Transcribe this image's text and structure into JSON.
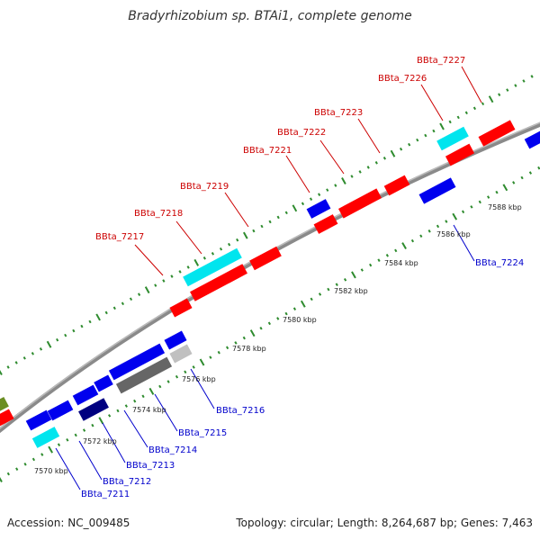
{
  "title": "Bradyrhizobium sp. BTAi1, complete genome",
  "footer": {
    "accession": "Accession: NC_009485",
    "summary": "Topology: circular; Length: 8,264,687 bp; Genes: 7,463"
  },
  "colors": {
    "red": "#ff0000",
    "blue": "#0000ee",
    "cyan": "#00e5ee",
    "navy": "#000080",
    "darkgray": "#666666",
    "lightgray": "#c0c0c0",
    "olive": "#6b8e23",
    "tick": "#2e8b2e",
    "label_red": "#cc0000",
    "label_blue": "#0000cc"
  },
  "scale_labels": [
    "7570 kbp",
    "7572 kbp",
    "7574 kbp",
    "7576 kbp",
    "7578 kbp",
    "7580 kbp",
    "7582 kbp",
    "7584 kbp",
    "7586 kbp",
    "7588 kbp"
  ],
  "top_labels": [
    "BBta_7217",
    "BBta_7218",
    "BBta_7219",
    "BBta_7221",
    "BBta_7222",
    "BBta_7223",
    "BBta_7226",
    "BBta_7227"
  ],
  "bottom_labels": [
    "BBta_7211",
    "BBta_7212",
    "BBta_7213",
    "BBta_7214",
    "BBta_7215",
    "BBta_7216",
    "BBta_7224"
  ]
}
